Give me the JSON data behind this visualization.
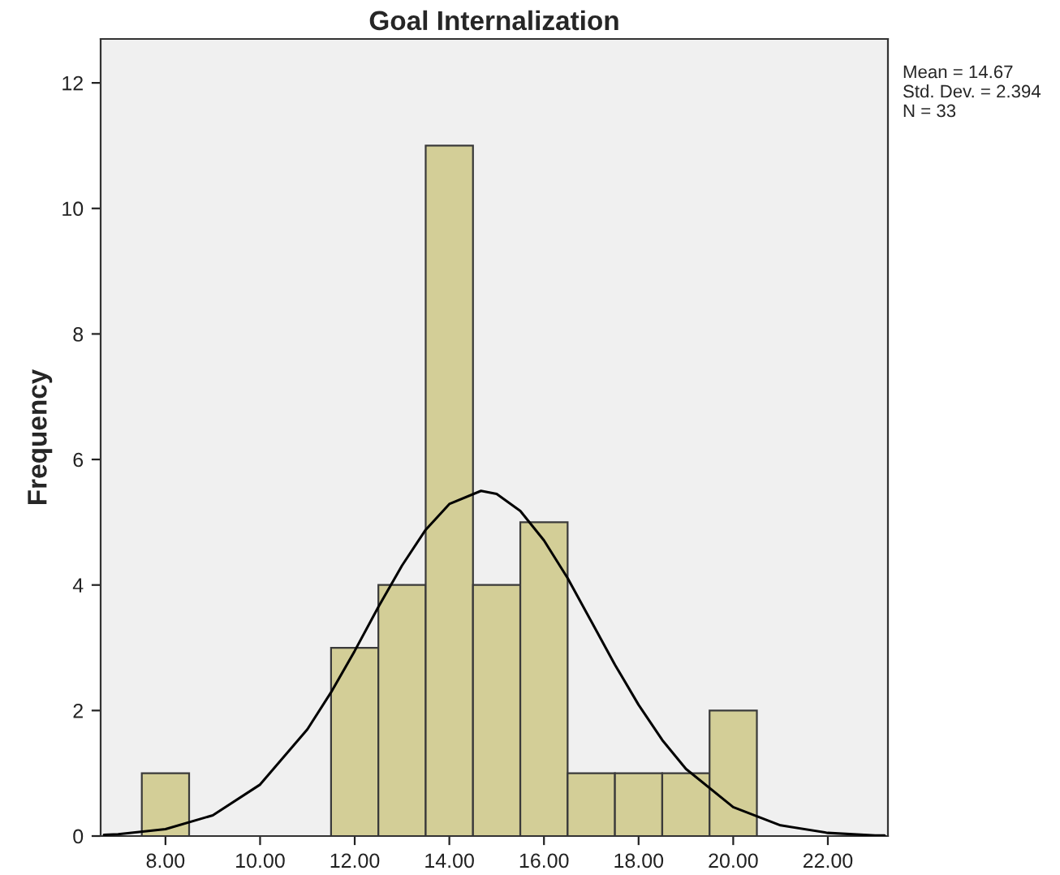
{
  "chart_data": {
    "type": "histogram",
    "title": "Goal Internalization",
    "ylabel": "Frequency",
    "series": [
      {
        "color": "#d3ce97",
        "bins": [
          7.5,
          8.5,
          9.5,
          10.5,
          11.5,
          12.5,
          13.5,
          14.5,
          15.5,
          16.5,
          17.5,
          18.5,
          19.5,
          20.5
        ],
        "values": [
          1,
          0,
          0,
          0,
          3,
          4,
          11,
          4,
          5,
          1,
          1,
          1,
          2
        ]
      },
      {
        "type": "line",
        "color": "#000000",
        "x": [
          6.7,
          7,
          8,
          9,
          10,
          11,
          11.5,
          12,
          12.5,
          13,
          13.5,
          14,
          14.67,
          15,
          15.5,
          16,
          16.5,
          17,
          17.5,
          18,
          18.5,
          19,
          20,
          21,
          22,
          23,
          23.2
        ],
        "values": [
          0.02,
          0.03,
          0.11,
          0.33,
          0.82,
          1.7,
          2.29,
          2.95,
          3.65,
          4.31,
          4.88,
          5.29,
          5.5,
          5.45,
          5.18,
          4.71,
          4.11,
          3.42,
          2.73,
          2.09,
          1.53,
          1.07,
          0.46,
          0.17,
          0.05,
          0.01,
          0.01
        ]
      }
    ],
    "xlim": [
      6.63,
      23.27
    ],
    "ylim": [
      0,
      12.7
    ],
    "xticks": [
      {
        "value": 8,
        "label": "8.00"
      },
      {
        "value": 10,
        "label": "10.00"
      },
      {
        "value": 12,
        "label": "12.00"
      },
      {
        "value": 14,
        "label": "14.00"
      },
      {
        "value": 16,
        "label": "16.00"
      },
      {
        "value": 18,
        "label": "18.00"
      },
      {
        "value": 20,
        "label": "20.00"
      },
      {
        "value": 22,
        "label": "22.00"
      }
    ],
    "yticks": [
      0,
      2,
      4,
      6,
      8,
      10,
      12
    ],
    "grid": false,
    "annotations": [
      "Mean = 14.67",
      "Std. Dev. = 2.394",
      "N = 33"
    ]
  }
}
